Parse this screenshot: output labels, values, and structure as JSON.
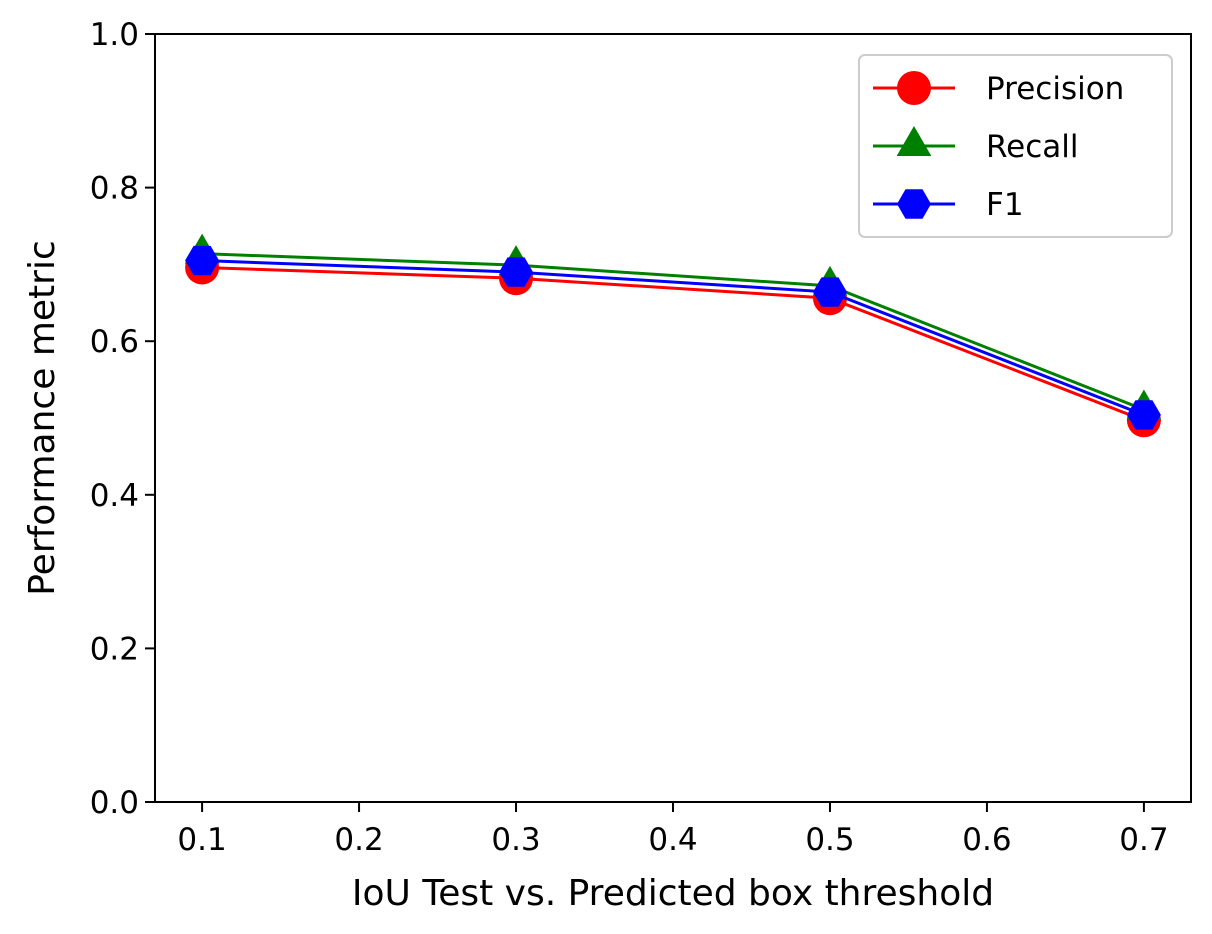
{
  "chart_data": {
    "type": "line",
    "title": "",
    "xlabel": "IoU Test vs. Predicted box threshold",
    "ylabel": "Performance metric",
    "x": [
      0.1,
      0.3,
      0.5,
      0.7
    ],
    "xlim": [
      0.07,
      0.73
    ],
    "ylim": [
      0.0,
      1.0
    ],
    "xticks": [
      0.1,
      0.2,
      0.3,
      0.4,
      0.5,
      0.6,
      0.7
    ],
    "xtick_labels": [
      "0.1",
      "0.2",
      "0.3",
      "0.4",
      "0.5",
      "0.6",
      "0.7"
    ],
    "yticks": [
      0.0,
      0.2,
      0.4,
      0.6,
      0.8,
      1.0
    ],
    "ytick_labels": [
      "0.0",
      "0.2",
      "0.4",
      "0.6",
      "0.8",
      "1.0"
    ],
    "grid": false,
    "legend_position": "top-right",
    "series": [
      {
        "name": "Precision",
        "values": [
          0.696,
          0.682,
          0.656,
          0.497
        ],
        "color": "#ff0000",
        "marker": "circle"
      },
      {
        "name": "Recall",
        "values": [
          0.714,
          0.699,
          0.672,
          0.511
        ],
        "color": "#008000",
        "marker": "triangle"
      },
      {
        "name": "F1",
        "values": [
          0.705,
          0.69,
          0.664,
          0.504
        ],
        "color": "#0000ff",
        "marker": "hexagon"
      }
    ]
  }
}
